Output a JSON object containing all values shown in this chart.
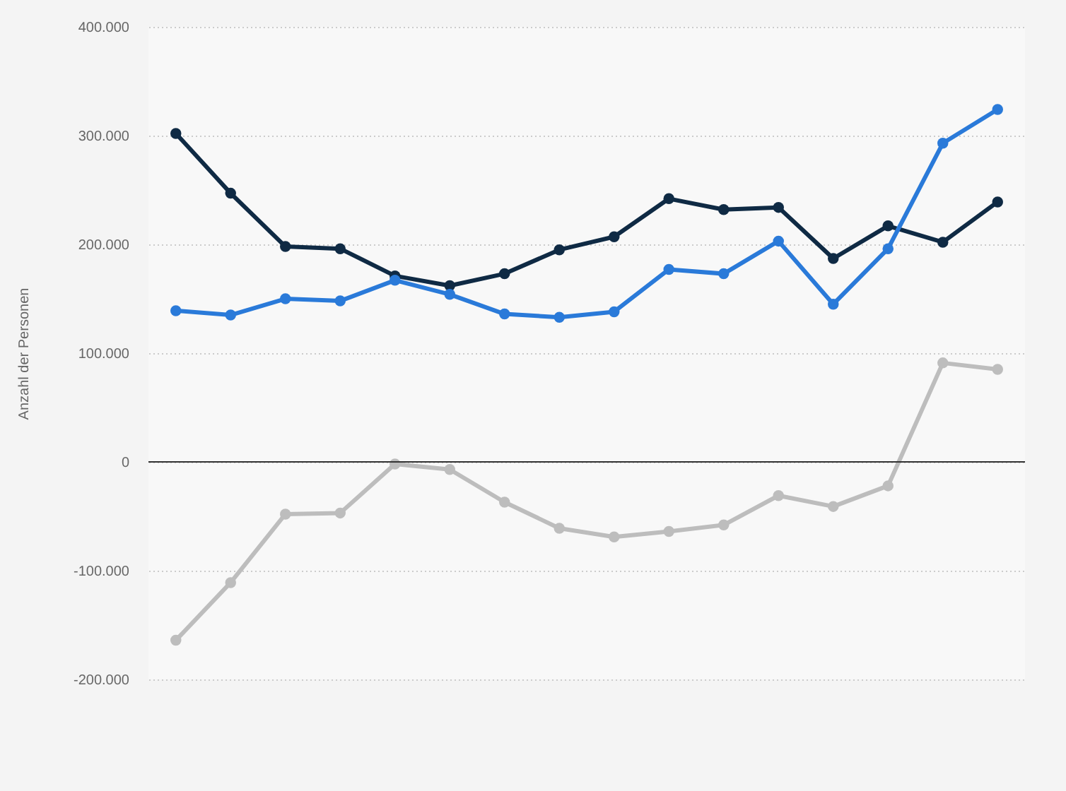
{
  "chart_data": {
    "type": "line",
    "ylabel": "Anzahl der Personen",
    "categories": [
      null,
      null,
      null,
      null,
      null,
      null,
      null,
      null,
      null,
      null,
      null,
      null,
      null,
      null,
      null,
      null
    ],
    "series": [
      {
        "color": "#0f2a44",
        "values": [
          302000,
          247000,
          198000,
          196000,
          171000,
          162000,
          173000,
          195000,
          207000,
          242000,
          232000,
          234000,
          187000,
          217000,
          202000,
          239000
        ]
      },
      {
        "color": "#2a7ad9",
        "values": [
          139000,
          135000,
          150000,
          148000,
          167000,
          154000,
          136000,
          133000,
          138000,
          177000,
          173000,
          203000,
          145000,
          196000,
          293000,
          324000
        ]
      },
      {
        "color": "#bdbdbd",
        "values": [
          -164000,
          -111000,
          -48000,
          -47000,
          -2000,
          -7000,
          -37000,
          -61000,
          -69000,
          -64000,
          -58000,
          -31000,
          -41000,
          -22000,
          91000,
          85000
        ]
      }
    ],
    "ylim": [
      -200000,
      400000
    ],
    "yticks": [
      {
        "value": -200000,
        "label": "-200.000"
      },
      {
        "value": -100000,
        "label": "-100.000"
      },
      {
        "value": 0,
        "label": "0"
      },
      {
        "value": 100000,
        "label": "100.000"
      },
      {
        "value": 200000,
        "label": "200.000"
      },
      {
        "value": 300000,
        "label": "300.000"
      },
      {
        "value": 400000,
        "label": "400.000"
      }
    ],
    "ref_lines": [
      {
        "axis": "y",
        "value": 0,
        "color": "#333333"
      }
    ],
    "grid": "y",
    "legend": false,
    "tick_labels": "y",
    "marker": "circle",
    "line_style": "solid"
  }
}
